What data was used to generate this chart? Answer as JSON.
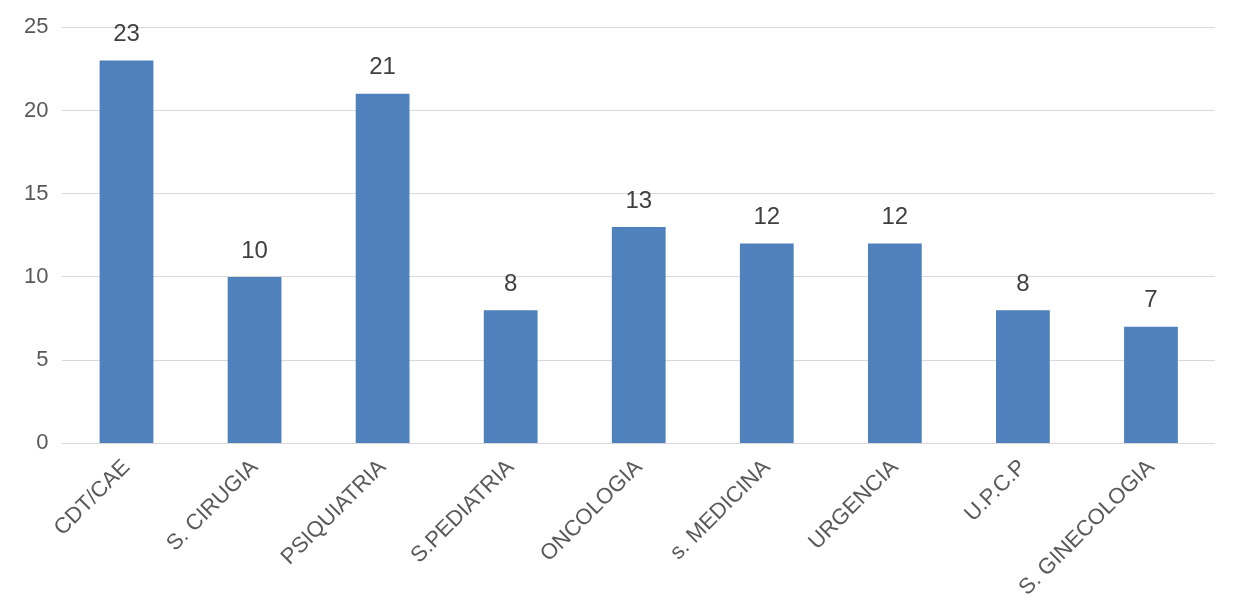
{
  "chart_data": {
    "type": "bar",
    "categories": [
      "CDT/CAE",
      "S. CIRUGIA",
      "PSIQUIATRIA",
      "S.PEDIATRIA",
      "ONCOLOGIA",
      "s. MEDICINA",
      "URGENCIA",
      "U.P.C.P",
      "S. GINECOLOGIA"
    ],
    "values": [
      23,
      10,
      21,
      8,
      13,
      12,
      12,
      8,
      7
    ],
    "color": "#4f81bd",
    "ylim": [
      0,
      25
    ],
    "yticks": [
      0,
      5,
      10,
      15,
      20,
      25
    ],
    "grid": "y",
    "data_labels": true,
    "legend": false
  }
}
